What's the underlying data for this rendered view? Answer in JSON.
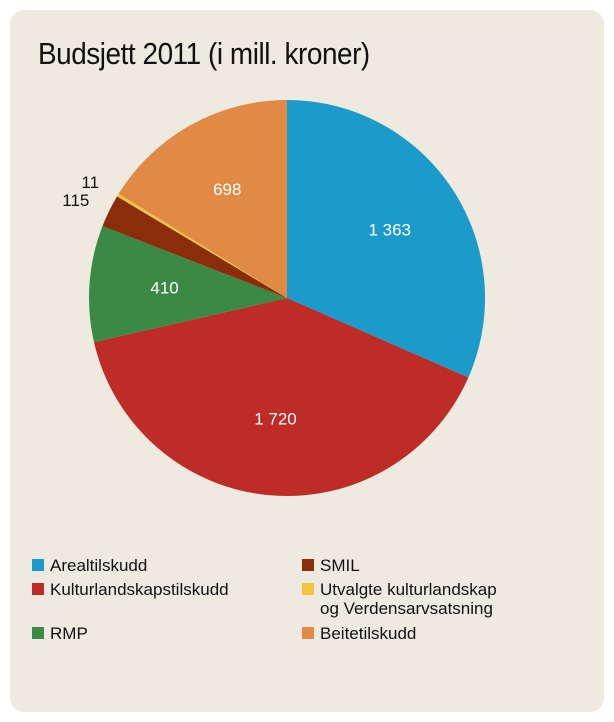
{
  "chart_data": {
    "type": "pie",
    "title": "Budsjett 2011 (i mill. kroner)",
    "categories": [
      "Arealtilskudd",
      "Kulturlandskapstilskudd",
      "RMP",
      "SMIL",
      "Utvalgte kulturlandskap og Verdensarvsatsning",
      "Beitetilskudd"
    ],
    "values": [
      1363,
      1720,
      410,
      115,
      11,
      698
    ],
    "value_labels": [
      "1 363",
      "1 720",
      "410",
      "115",
      "11",
      "698"
    ],
    "colors": [
      "#1b9bc9",
      "#bd2c27",
      "#3a8a45",
      "#8a2d0b",
      "#f3c53c",
      "#e08a45"
    ]
  }
}
